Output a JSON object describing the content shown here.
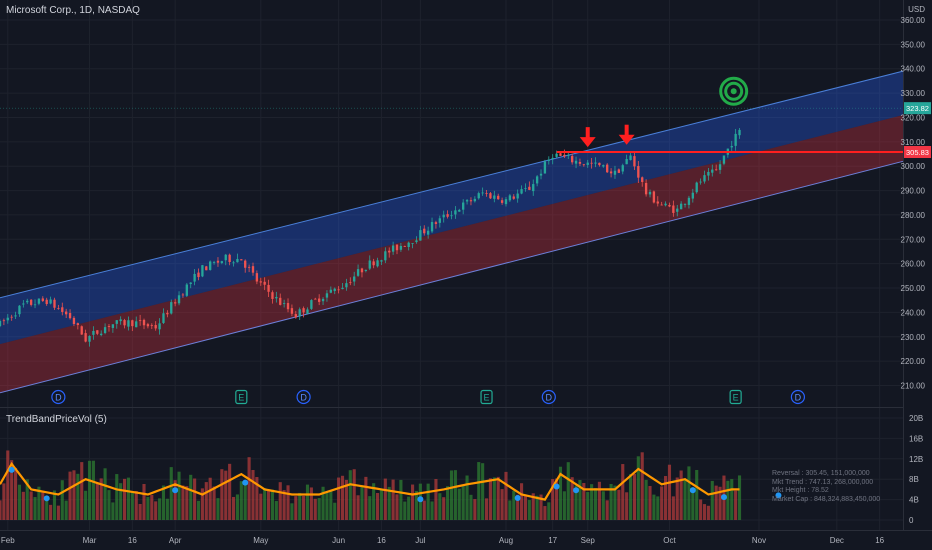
{
  "header": {
    "title": "Microsoft Corp., 1D, NASDAQ"
  },
  "indicator": {
    "name": "TrendBandPriceVol (5)",
    "legend": [
      "Reversal : 305.45, 151,000,000",
      "Mkt Trend : 747.13, 268,000,000",
      "Mkt Height : 78.52",
      "Market Cap : 848,324,883,450,000"
    ]
  },
  "colors": {
    "bg": "#131722",
    "up": "#26a69a",
    "down": "#ef5350",
    "upper_band": "#2962ff",
    "lower_band": "#f23645",
    "resistance": "#ff1f1f",
    "target": "#22ab49",
    "vol_ma": "#ff9800",
    "marker": "#2196f3"
  },
  "chart_data": [
    {
      "type": "candlestick",
      "currency": "USD",
      "y_range": [
        205,
        365
      ],
      "y_ticks": [
        "360.00",
        "350.00",
        "340.00",
        "330.00",
        "320.00",
        "310.00",
        "300.00",
        "290.00",
        "280.00",
        "270.00",
        "260.00",
        "250.00",
        "240.00",
        "230.00",
        "220.00",
        "210.00"
      ],
      "y_tick_values": [
        360,
        350,
        340,
        330,
        320,
        310,
        300,
        290,
        280,
        270,
        260,
        250,
        240,
        230,
        220,
        210
      ],
      "x_range": [
        0,
        232
      ],
      "x_ticks": [
        {
          "label": "Feb",
          "x": 2
        },
        {
          "label": "Mar",
          "x": 23
        },
        {
          "label": "16",
          "x": 34
        },
        {
          "label": "Apr",
          "x": 45
        },
        {
          "label": "May",
          "x": 67
        },
        {
          "label": "Jun",
          "x": 87
        },
        {
          "label": "16",
          "x": 98
        },
        {
          "label": "Jul",
          "x": 108
        },
        {
          "label": "Aug",
          "x": 130
        },
        {
          "label": "17",
          "x": 142
        },
        {
          "label": "Sep",
          "x": 151
        },
        {
          "label": "Oct",
          "x": 172
        },
        {
          "label": "Nov",
          "x": 195
        },
        {
          "label": "Dec",
          "x": 215
        },
        {
          "label": "16",
          "x": 226
        }
      ],
      "price_anchors": [
        {
          "x": 0,
          "price": 235
        },
        {
          "x": 6,
          "price": 243
        },
        {
          "x": 12,
          "price": 245
        },
        {
          "x": 18,
          "price": 238
        },
        {
          "x": 22,
          "price": 229
        },
        {
          "x": 28,
          "price": 235
        },
        {
          "x": 34,
          "price": 236
        },
        {
          "x": 40,
          "price": 234
        },
        {
          "x": 46,
          "price": 247
        },
        {
          "x": 52,
          "price": 258
        },
        {
          "x": 58,
          "price": 262
        },
        {
          "x": 62,
          "price": 262
        },
        {
          "x": 66,
          "price": 253
        },
        {
          "x": 72,
          "price": 244
        },
        {
          "x": 76,
          "price": 239
        },
        {
          "x": 82,
          "price": 246
        },
        {
          "x": 88,
          "price": 251
        },
        {
          "x": 94,
          "price": 259
        },
        {
          "x": 100,
          "price": 265
        },
        {
          "x": 106,
          "price": 270
        },
        {
          "x": 112,
          "price": 277
        },
        {
          "x": 118,
          "price": 283
        },
        {
          "x": 124,
          "price": 289
        },
        {
          "x": 130,
          "price": 286
        },
        {
          "x": 136,
          "price": 291
        },
        {
          "x": 142,
          "price": 305
        },
        {
          "x": 148,
          "price": 302
        },
        {
          "x": 154,
          "price": 300
        },
        {
          "x": 158,
          "price": 297
        },
        {
          "x": 162,
          "price": 304
        },
        {
          "x": 166,
          "price": 289
        },
        {
          "x": 170,
          "price": 284
        },
        {
          "x": 174,
          "price": 282
        },
        {
          "x": 176,
          "price": 286
        },
        {
          "x": 180,
          "price": 294
        },
        {
          "x": 184,
          "price": 298
        },
        {
          "x": 188,
          "price": 310
        },
        {
          "x": 190,
          "price": 314
        }
      ],
      "trend_channel": {
        "start_x": 0,
        "end_x": 232,
        "upper": [
          246,
          339
        ],
        "middle": [
          227,
          321
        ],
        "lower": [
          207,
          302
        ]
      },
      "resistance": {
        "price": 305.83,
        "from_x": 143,
        "label": "305.83"
      },
      "last_price": {
        "price": 323.82,
        "label": "323.82"
      },
      "arrows_down": [
        {
          "x": 151,
          "price": 307
        },
        {
          "x": 161,
          "price": 308
        }
      ],
      "target_marker": {
        "x": 188.5,
        "price": 325
      },
      "events": [
        {
          "kind": "D",
          "x": 15
        },
        {
          "kind": "E",
          "x": 62
        },
        {
          "kind": "D",
          "x": 78
        },
        {
          "kind": "E",
          "x": 125
        },
        {
          "kind": "D",
          "x": 141
        },
        {
          "kind": "E",
          "x": 189
        },
        {
          "kind": "D",
          "x": 205
        }
      ]
    },
    {
      "type": "bar",
      "series_name": "TrendBandPriceVol (5)",
      "y_ticks": [
        "20B",
        "16B",
        "12B",
        "8B",
        "4B",
        "0"
      ],
      "y_tick_values": [
        20,
        16,
        12,
        8,
        4,
        0
      ],
      "unit": "B",
      "volume_profile": [
        {
          "x": 0,
          "v": 7
        },
        {
          "x": 3,
          "v": 11
        },
        {
          "x": 8,
          "v": 6
        },
        {
          "x": 15,
          "v": 5
        },
        {
          "x": 22,
          "v": 8
        },
        {
          "x": 30,
          "v": 6
        },
        {
          "x": 38,
          "v": 5
        },
        {
          "x": 45,
          "v": 7
        },
        {
          "x": 52,
          "v": 5
        },
        {
          "x": 62,
          "v": 9
        },
        {
          "x": 68,
          "v": 6
        },
        {
          "x": 75,
          "v": 5
        },
        {
          "x": 82,
          "v": 5
        },
        {
          "x": 90,
          "v": 7
        },
        {
          "x": 98,
          "v": 6
        },
        {
          "x": 106,
          "v": 5
        },
        {
          "x": 114,
          "v": 6
        },
        {
          "x": 120,
          "v": 7
        },
        {
          "x": 128,
          "v": 8
        },
        {
          "x": 134,
          "v": 5
        },
        {
          "x": 140,
          "v": 4
        },
        {
          "x": 144,
          "v": 9
        },
        {
          "x": 150,
          "v": 6
        },
        {
          "x": 158,
          "v": 6
        },
        {
          "x": 164,
          "v": 10
        },
        {
          "x": 170,
          "v": 7
        },
        {
          "x": 176,
          "v": 8
        },
        {
          "x": 182,
          "v": 5
        },
        {
          "x": 188,
          "v": 6
        },
        {
          "x": 192,
          "v": 6
        }
      ],
      "markers_x": [
        3,
        12,
        45,
        63,
        108,
        133,
        143,
        148,
        178,
        186,
        200
      ]
    }
  ]
}
